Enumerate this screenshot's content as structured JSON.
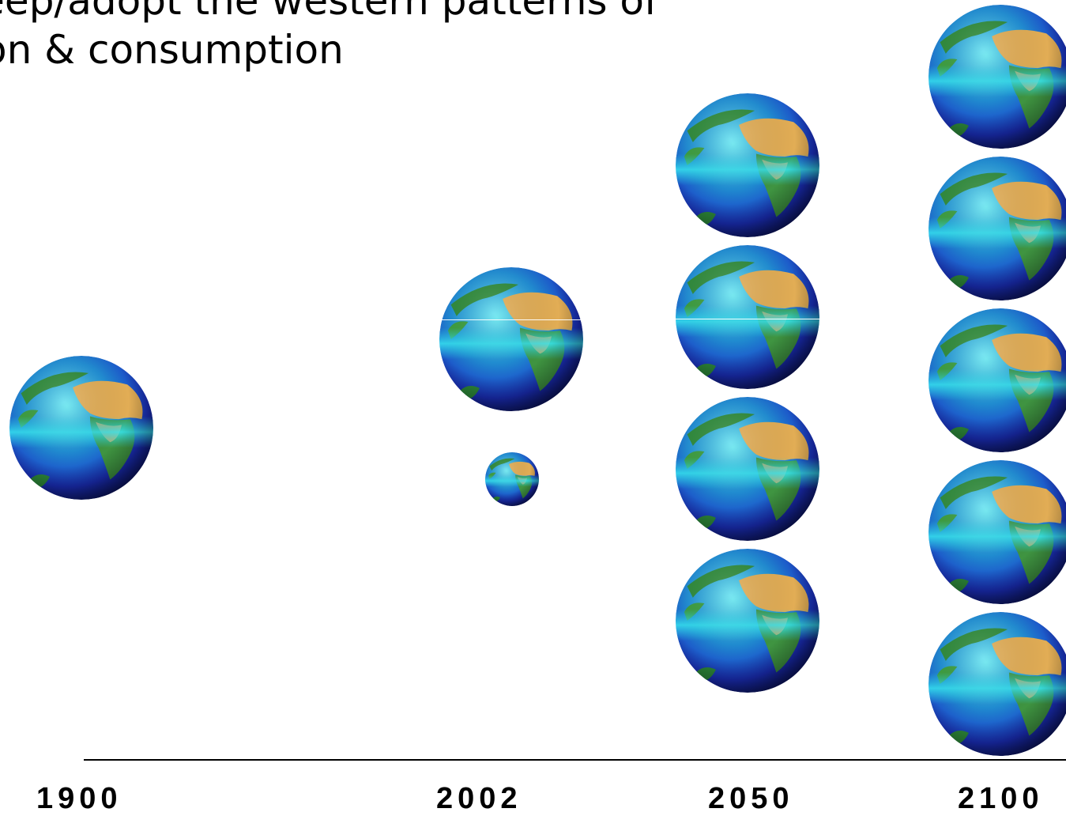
{
  "title": {
    "line1": "keep/adopt the western patterns of",
    "line2": "on & consumption"
  },
  "globe_icon": "earth-globe",
  "colors": {
    "ocean_deep": "#1a2fb8",
    "ocean_light": "#2ad4e8",
    "land": "#e2ad55",
    "vegetation": "#2e8b3a",
    "axis": "#000000"
  },
  "timeline": [
    {
      "year": "1900",
      "earths": 1
    },
    {
      "year": "2002",
      "earths": 1.1
    },
    {
      "year": "2050",
      "earths": 4
    },
    {
      "year": "2100",
      "earths": 5
    }
  ]
}
